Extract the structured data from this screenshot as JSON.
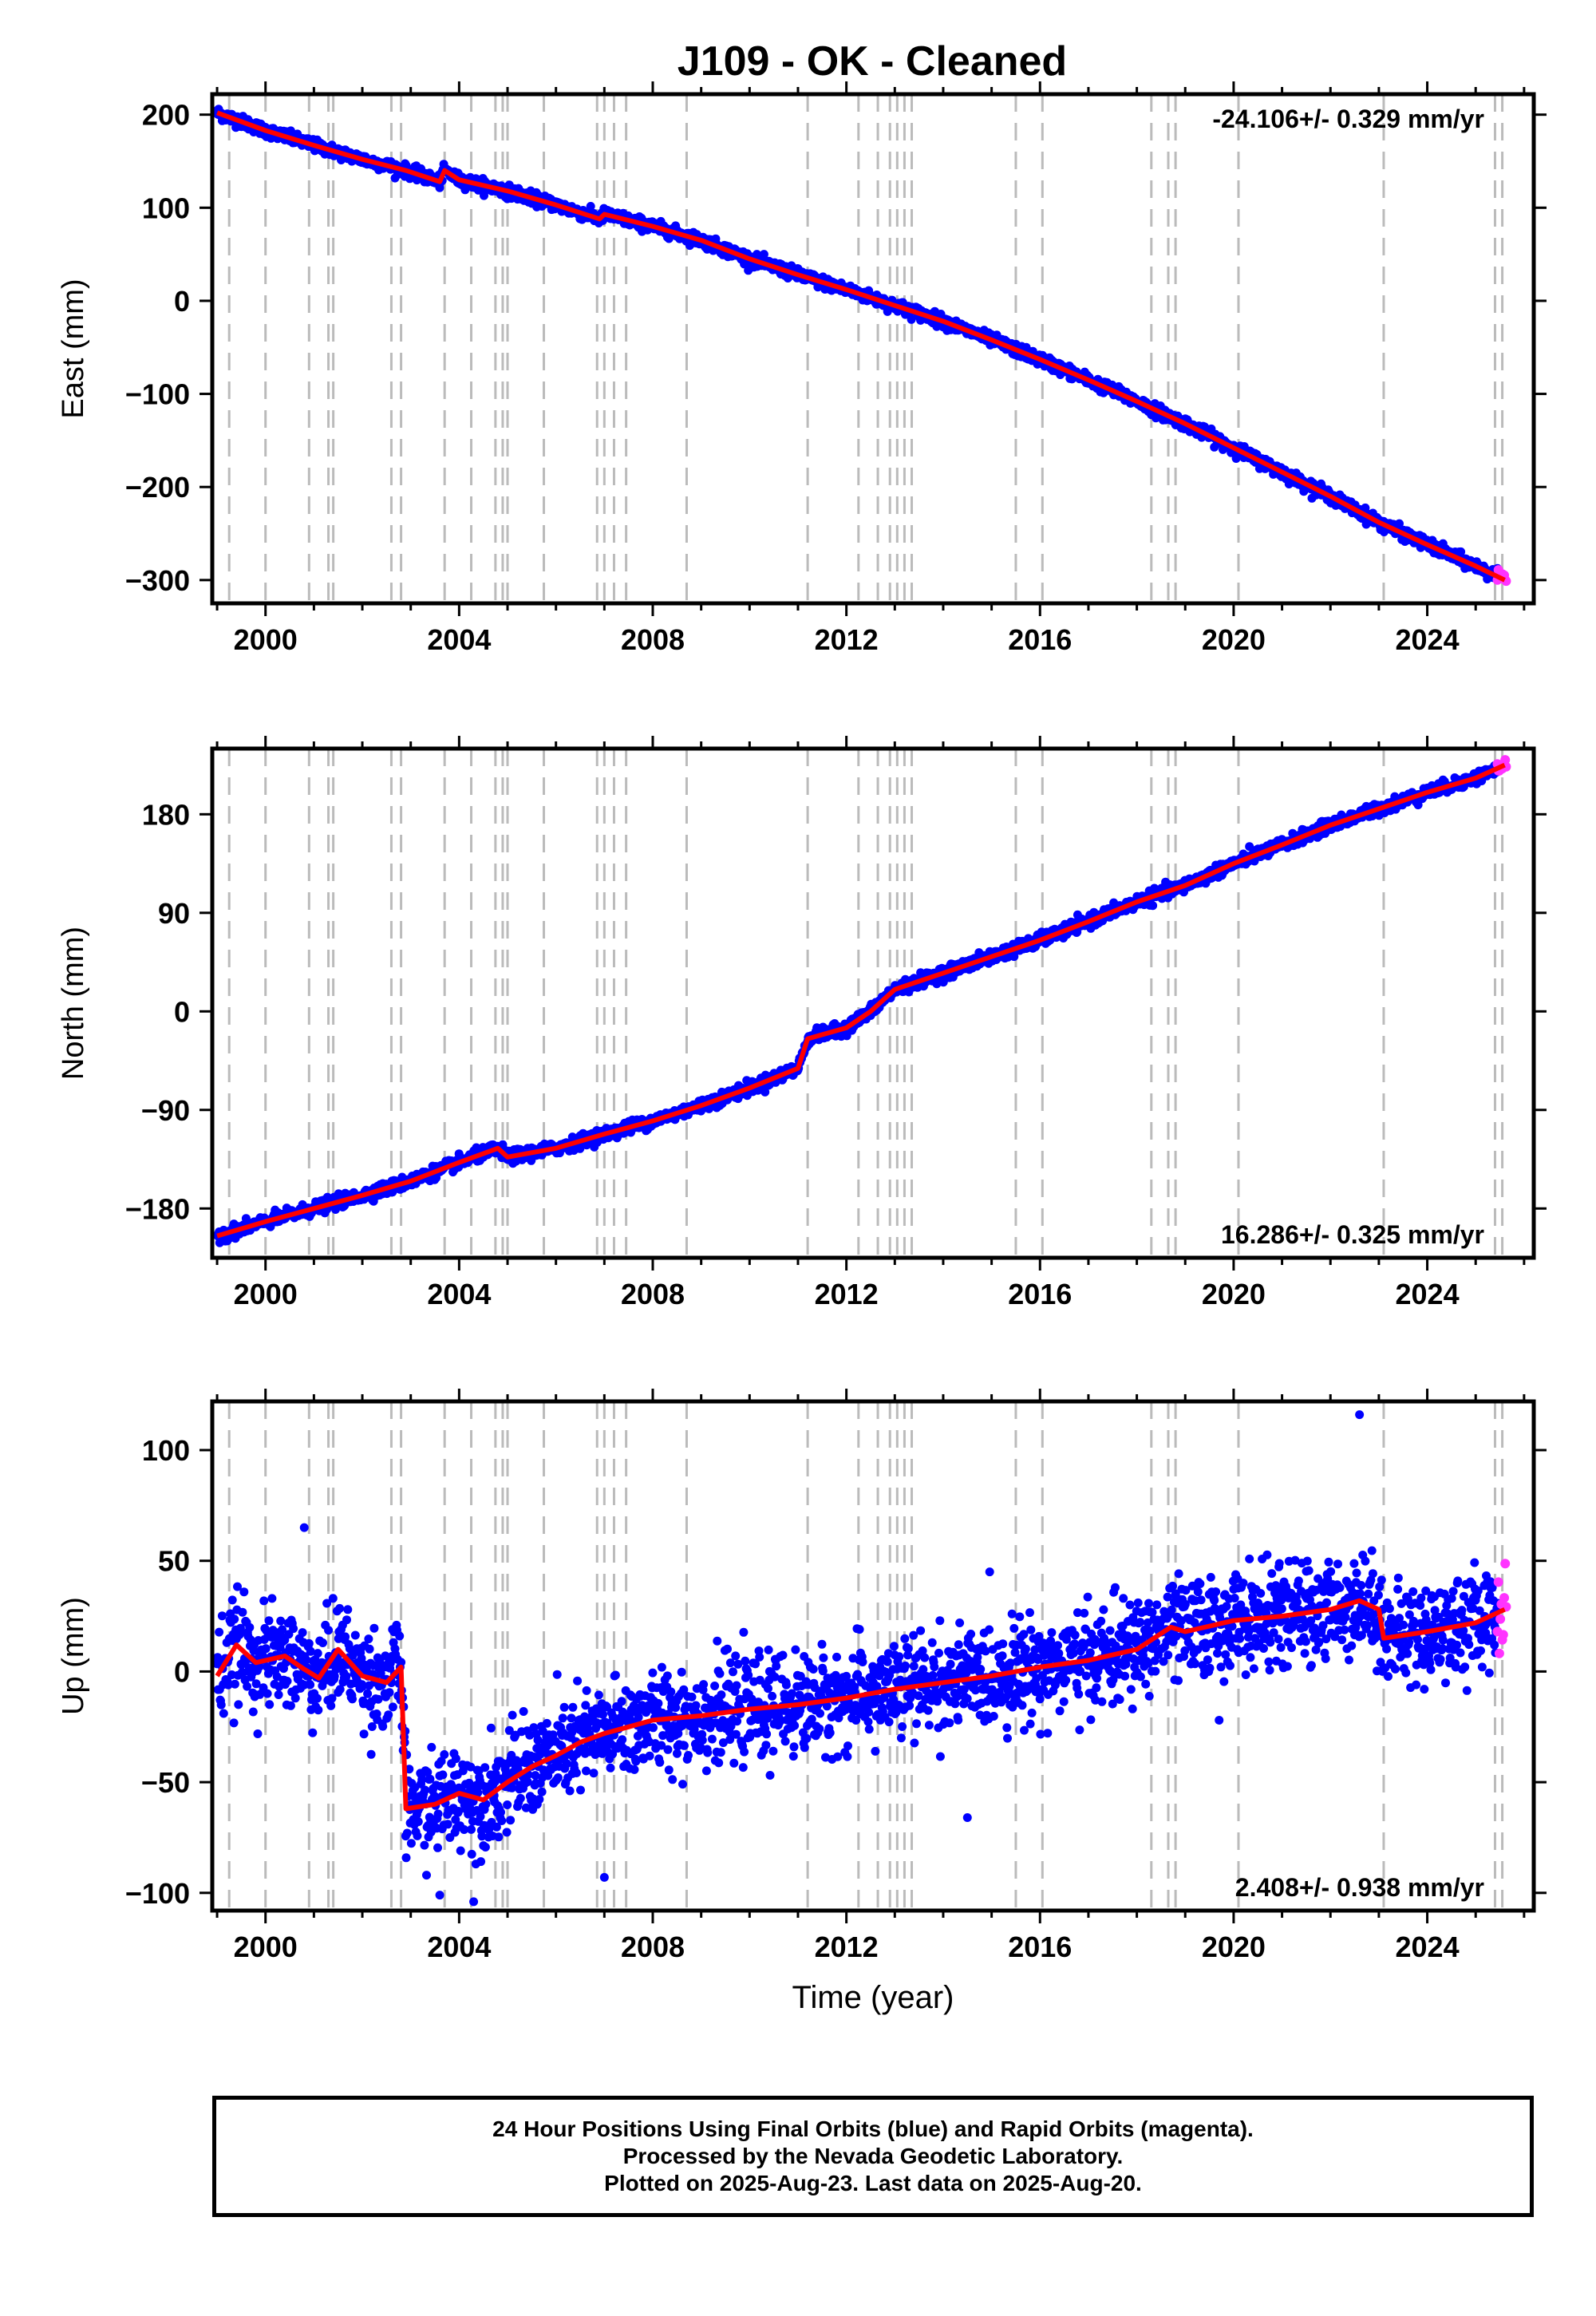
{
  "title": "J109  - OK - Cleaned",
  "colors": {
    "final_orbits": "#0000ff",
    "rapid_orbits": "#ff33ff",
    "model_fit": "#ff0000",
    "event_lines": "#bbbbbb"
  },
  "caption": {
    "line1": "24 Hour Positions Using Final Orbits (blue) and Rapid Orbits (magenta).",
    "line2": "Processed by the Nevada Geodetic Laboratory.",
    "line3": "Plotted on 2025-Aug-23. Last data on 2025-Aug-20."
  },
  "chart_data": [
    {
      "type": "scatter",
      "component": "East",
      "ylabel": "East (mm)",
      "xlabel": "",
      "xlim": [
        1998.9,
        2026.2
      ],
      "ylim": [
        -325,
        222
      ],
      "xticks": [
        2000,
        2004,
        2008,
        2012,
        2016,
        2020,
        2024
      ],
      "yticks": [
        -300,
        -200,
        -100,
        0,
        100,
        200
      ],
      "rate_label": "-24.106+/- 0.329 mm/yr",
      "rate_position": "top-right",
      "series": [
        {
          "x": [
            1999.0,
            2000.0,
            2001.0,
            2002.0,
            2002.9,
            2003.6,
            2003.7,
            2004.0,
            2005.0,
            2006.0,
            2006.9,
            2007.0,
            2008.0,
            2009.0,
            2010.0,
            2011.0,
            2012.0,
            2013.0,
            2014.0,
            2015.0,
            2016.0,
            2017.0,
            2018.0,
            2019.0,
            2020.0,
            2021.0,
            2022.0,
            2023.0,
            2024.0,
            2025.0,
            2025.6
          ],
          "y": [
            202,
            183,
            167,
            152,
            140,
            128,
            140,
            130,
            118,
            103,
            88,
            93,
            80,
            65,
            45,
            28,
            12,
            -5,
            -22,
            -42,
            -63,
            -85,
            -108,
            -132,
            -158,
            -184,
            -210,
            -238,
            -262,
            -285,
            -300
          ]
        }
      ]
    },
    {
      "type": "scatter",
      "component": "North",
      "ylabel": "North (mm)",
      "xlabel": "",
      "xlim": [
        1998.9,
        2026.2
      ],
      "ylim": [
        -225,
        240
      ],
      "xticks": [
        2000,
        2004,
        2008,
        2012,
        2016,
        2020,
        2024
      ],
      "yticks": [
        -180,
        -90,
        0,
        90,
        180
      ],
      "rate_label": "16.286+/- 0.325 mm/yr",
      "rate_position": "bottom-right",
      "series": [
        {
          "x": [
            1999.0,
            2000.0,
            2001.0,
            2002.0,
            2003.0,
            2004.0,
            2004.8,
            2005.0,
            2006.0,
            2007.0,
            2008.0,
            2009.0,
            2010.0,
            2011.0,
            2011.2,
            2012.0,
            2012.5,
            2013.0,
            2014.0,
            2015.0,
            2016.0,
            2017.0,
            2018.0,
            2019.0,
            2020.0,
            2021.0,
            2022.0,
            2023.0,
            2024.0,
            2025.0,
            2025.6
          ],
          "y": [
            -205,
            -192,
            -180,
            -168,
            -155,
            -138,
            -125,
            -133,
            -125,
            -112,
            -100,
            -86,
            -70,
            -52,
            -25,
            -15,
            0,
            20,
            35,
            50,
            65,
            82,
            100,
            115,
            135,
            152,
            170,
            185,
            200,
            213,
            225
          ]
        }
      ]
    },
    {
      "type": "scatter",
      "component": "Up",
      "ylabel": "Up (mm)",
      "xlabel": "Time (year)",
      "xlim": [
        1998.9,
        2026.2
      ],
      "ylim": [
        -108,
        122
      ],
      "xticks": [
        2000,
        2004,
        2008,
        2012,
        2016,
        2020,
        2024
      ],
      "yticks": [
        -100,
        -50,
        0,
        50,
        100
      ],
      "rate_label": "2.408+/- 0.938 mm/yr",
      "rate_position": "bottom-right",
      "series": [
        {
          "x": [
            1999.0,
            1999.4,
            1999.8,
            2000.4,
            2000.8,
            2001.1,
            2001.5,
            2002.0,
            2002.5,
            2002.8,
            2002.9,
            2003.5,
            2004.0,
            2004.5,
            2005.0,
            2005.5,
            2006.0,
            2006.5,
            2007.0,
            2007.5,
            2008.0,
            2009.0,
            2010.0,
            2011.0,
            2012.0,
            2013.0,
            2014.0,
            2015.0,
            2016.0,
            2017.0,
            2018.0,
            2018.7,
            2019.0,
            2020.0,
            2021.0,
            2022.0,
            2022.6,
            2023.0,
            2023.1,
            2024.0,
            2025.0,
            2025.6
          ],
          "y": [
            -2,
            12,
            4,
            7,
            1,
            -3,
            10,
            -2,
            -5,
            2,
            -62,
            -60,
            -55,
            -58,
            -50,
            -43,
            -38,
            -32,
            -28,
            -25,
            -22,
            -20,
            -17,
            -15,
            -12,
            -8,
            -5,
            -2,
            2,
            5,
            10,
            20,
            18,
            23,
            25,
            28,
            32,
            28,
            15,
            18,
            22,
            28
          ]
        }
      ]
    }
  ],
  "event_lines": [
    1999.25,
    2000.0,
    2000.9,
    2001.3,
    2001.4,
    2002.6,
    2002.8,
    2003.7,
    2004.25,
    2004.75,
    2004.9,
    2005.0,
    2005.75,
    2006.85,
    2007.0,
    2007.2,
    2007.45,
    2008.7,
    2011.2,
    2012.25,
    2012.65,
    2012.9,
    2013.05,
    2013.2,
    2013.35,
    2015.5,
    2016.05,
    2018.3,
    2018.65,
    2018.8,
    2020.1,
    2023.1,
    2025.4,
    2025.55
  ]
}
